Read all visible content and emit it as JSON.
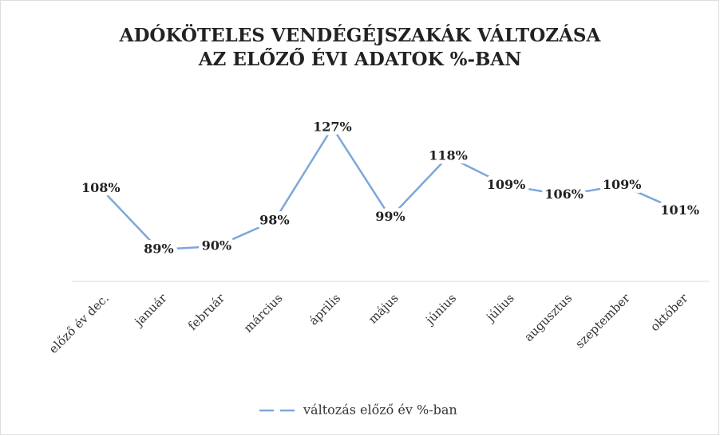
{
  "chart_data": {
    "type": "line",
    "title": [
      "ADÓKÖTELES VENDÉGÉJSZAKÁK VÁLTOZÁSA",
      "AZ ELŐZŐ ÉVI ADATOK %-BAN"
    ],
    "categories": [
      "előző év dec.",
      "január",
      "február",
      "március",
      "április",
      "május",
      "június",
      "július",
      "augusztus",
      "szeptember",
      "október"
    ],
    "series": [
      {
        "name": "változás előző év %-ban",
        "color": "#7ba7d9",
        "values": [
          108,
          89,
          90,
          98,
          127,
          99,
          118,
          109,
          106,
          109,
          101
        ],
        "value_labels": [
          "108%",
          "89%",
          "90%",
          "98%",
          "127%",
          "99%",
          "118%",
          "109%",
          "106%",
          "109%",
          "101%"
        ]
      }
    ],
    "legend": "bottom"
  }
}
